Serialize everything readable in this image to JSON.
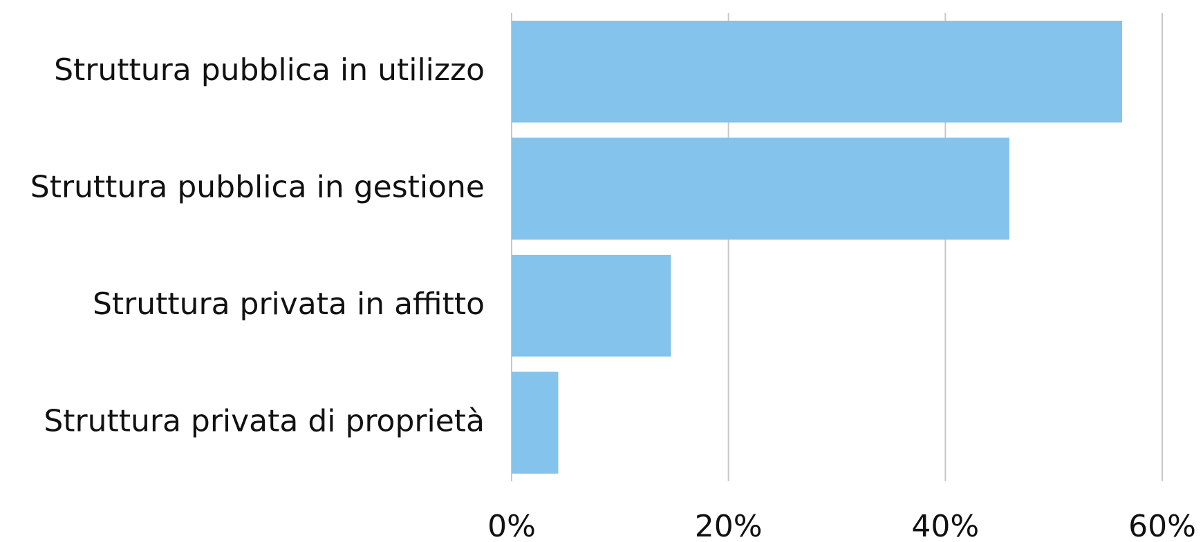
{
  "chart_data": {
    "type": "hbar",
    "categories": [
      "Struttura pubblica in utilizzo",
      "Struttura pubblica in gestione",
      "Struttura privata in affitto",
      "Struttura privata di proprietà"
    ],
    "values": [
      56.3,
      45.9,
      14.7,
      4.3
    ],
    "color": "#83c3ec",
    "xlim": [
      0,
      60
    ],
    "xticks": [
      {
        "value": 0,
        "label": "0%"
      },
      {
        "value": 20,
        "label": "20%"
      },
      {
        "value": 40,
        "label": "40%"
      },
      {
        "value": 60,
        "label": "60%"
      }
    ],
    "grid": true
  }
}
